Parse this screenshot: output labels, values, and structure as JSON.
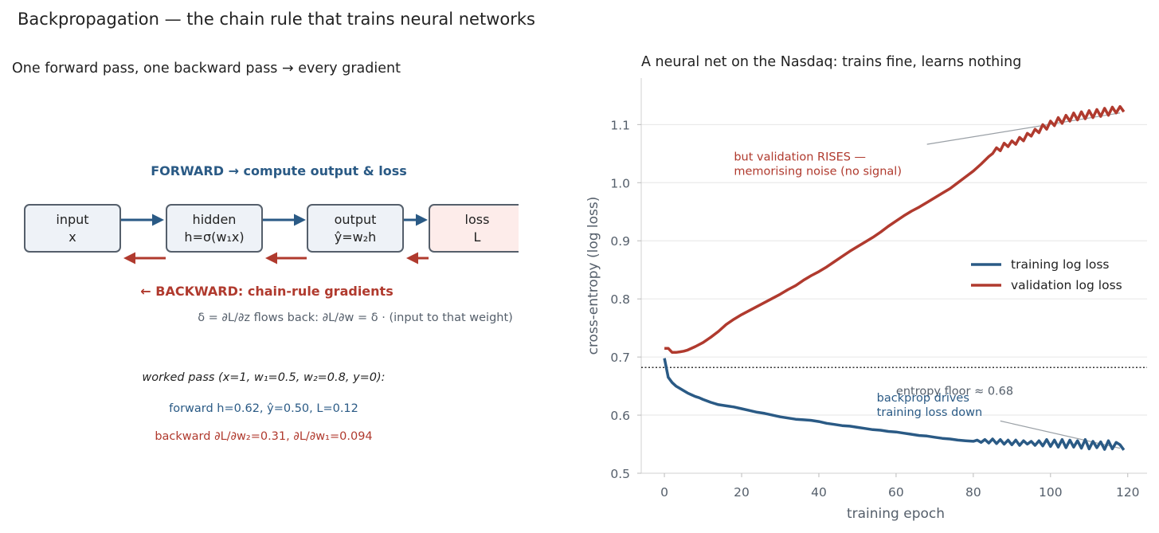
{
  "figure": {
    "suptitle": "Backpropagation — the chain rule that trains neural networks"
  },
  "diagram": {
    "title": "One forward pass, one backward pass → every gradient",
    "forward_label": "FORWARD → compute output & loss",
    "backward_label": "← BACKWARD: chain-rule gradients",
    "delta_note": "δ = ∂L/∂z  flows back:   ∂L/∂w = δ · (input to that weight)",
    "nodes": [
      {
        "line1": "input",
        "line2": "x",
        "kind": "layer"
      },
      {
        "line1": "hidden",
        "line2": "h=σ(w₁x)",
        "kind": "layer"
      },
      {
        "line1": "output",
        "line2": "ŷ=w₂h",
        "kind": "layer"
      },
      {
        "line1": "loss",
        "line2": "L",
        "kind": "loss"
      }
    ],
    "worked_title": "worked pass (x=1, w₁=0.5, w₂=0.8, y=0):",
    "worked_forward": "forward  h=0.62,  ŷ=0.50,  L=0.12",
    "worked_backward": "backward  ∂L/∂w₂=0.31,  ∂L/∂w₁=0.094",
    "colors": {
      "forward": "#2a5a85",
      "backward": "#b03a2e",
      "box_fill": "#eef2f7",
      "loss_fill": "#fdecea",
      "box_stroke": "#555f6b"
    }
  },
  "chart_data": {
    "type": "line",
    "title": "A neural net on the Nasdaq: trains fine, learns nothing",
    "xlabel": "training epoch",
    "ylabel": "cross-entropy (log loss)",
    "xlim": [
      -6,
      125
    ],
    "ylim": [
      0.5,
      1.18
    ],
    "xticks": [
      0,
      20,
      40,
      60,
      80,
      100,
      120
    ],
    "yticks": [
      0.5,
      0.6,
      0.7,
      0.8,
      0.9,
      1.0,
      1.1
    ],
    "grid": "horizontal",
    "legend_position": "center-right",
    "hline": {
      "y": 0.682,
      "label": "entropy floor ≈ 0.68",
      "style": "dotted"
    },
    "series": [
      {
        "name": "training log loss",
        "color": "#2a5a85",
        "x": [
          0,
          1,
          2,
          3,
          4,
          5,
          6,
          7,
          8,
          9,
          10,
          12,
          14,
          16,
          18,
          20,
          22,
          24,
          26,
          28,
          30,
          32,
          34,
          36,
          38,
          40,
          42,
          44,
          46,
          48,
          50,
          52,
          54,
          56,
          58,
          60,
          62,
          64,
          66,
          68,
          70,
          72,
          74,
          76,
          78,
          80,
          81,
          82,
          83,
          84,
          85,
          86,
          87,
          88,
          89,
          90,
          91,
          92,
          93,
          94,
          95,
          96,
          97,
          98,
          99,
          100,
          101,
          102,
          103,
          104,
          105,
          106,
          107,
          108,
          109,
          110,
          111,
          112,
          113,
          114,
          115,
          116,
          117,
          118,
          119
        ],
        "values": [
          0.698,
          0.665,
          0.656,
          0.65,
          0.646,
          0.642,
          0.638,
          0.635,
          0.632,
          0.63,
          0.627,
          0.622,
          0.618,
          0.616,
          0.614,
          0.611,
          0.608,
          0.605,
          0.603,
          0.6,
          0.597,
          0.595,
          0.593,
          0.592,
          0.591,
          0.589,
          0.586,
          0.584,
          0.582,
          0.581,
          0.579,
          0.577,
          0.575,
          0.574,
          0.572,
          0.571,
          0.569,
          0.567,
          0.565,
          0.564,
          0.562,
          0.56,
          0.559,
          0.557,
          0.556,
          0.555,
          0.557,
          0.553,
          0.558,
          0.552,
          0.559,
          0.551,
          0.558,
          0.55,
          0.557,
          0.549,
          0.557,
          0.548,
          0.556,
          0.55,
          0.555,
          0.548,
          0.556,
          0.547,
          0.558,
          0.546,
          0.557,
          0.545,
          0.558,
          0.544,
          0.557,
          0.545,
          0.556,
          0.543,
          0.558,
          0.542,
          0.555,
          0.544,
          0.554,
          0.541,
          0.556,
          0.542,
          0.553,
          0.549,
          0.54
        ]
      },
      {
        "name": "validation log loss",
        "color": "#b03a2e",
        "x": [
          0,
          1,
          2,
          3,
          4,
          5,
          6,
          8,
          10,
          12,
          14,
          16,
          18,
          20,
          22,
          24,
          26,
          28,
          30,
          32,
          34,
          36,
          38,
          40,
          42,
          44,
          46,
          48,
          50,
          52,
          54,
          56,
          58,
          60,
          62,
          64,
          66,
          68,
          70,
          72,
          74,
          76,
          78,
          80,
          82,
          84,
          85,
          86,
          87,
          88,
          89,
          90,
          91,
          92,
          93,
          94,
          95,
          96,
          97,
          98,
          99,
          100,
          101,
          102,
          103,
          104,
          105,
          106,
          107,
          108,
          109,
          110,
          111,
          112,
          113,
          114,
          115,
          116,
          117,
          118,
          119
        ],
        "values": [
          0.715,
          0.715,
          0.708,
          0.708,
          0.709,
          0.71,
          0.712,
          0.718,
          0.725,
          0.734,
          0.744,
          0.756,
          0.765,
          0.773,
          0.78,
          0.787,
          0.794,
          0.801,
          0.808,
          0.816,
          0.823,
          0.832,
          0.84,
          0.847,
          0.855,
          0.864,
          0.873,
          0.882,
          0.89,
          0.898,
          0.906,
          0.915,
          0.925,
          0.934,
          0.943,
          0.951,
          0.958,
          0.966,
          0.974,
          0.982,
          0.99,
          1.0,
          1.01,
          1.02,
          1.032,
          1.045,
          1.05,
          1.06,
          1.055,
          1.068,
          1.062,
          1.072,
          1.066,
          1.078,
          1.072,
          1.085,
          1.08,
          1.092,
          1.086,
          1.1,
          1.092,
          1.106,
          1.098,
          1.112,
          1.102,
          1.116,
          1.106,
          1.12,
          1.108,
          1.122,
          1.11,
          1.124,
          1.112,
          1.126,
          1.114,
          1.128,
          1.116,
          1.13,
          1.12,
          1.131,
          1.122
        ]
      }
    ],
    "annotations": [
      {
        "id": "val",
        "lines": [
          "but validation RISES —",
          "memorising noise (no signal)"
        ],
        "text_x": 18,
        "text_y": 1.02,
        "arrow_from": [
          68,
          1.066
        ],
        "arrow_to": [
          118,
          1.12
        ],
        "color": "#b03a2e"
      },
      {
        "id": "train",
        "lines": [
          "backprop drives",
          "training loss down"
        ],
        "text_x": 55,
        "text_y": 0.6,
        "arrow_from": [
          87,
          0.59
        ],
        "arrow_to": [
          118,
          0.543
        ],
        "color": "#2a5a85"
      }
    ]
  }
}
